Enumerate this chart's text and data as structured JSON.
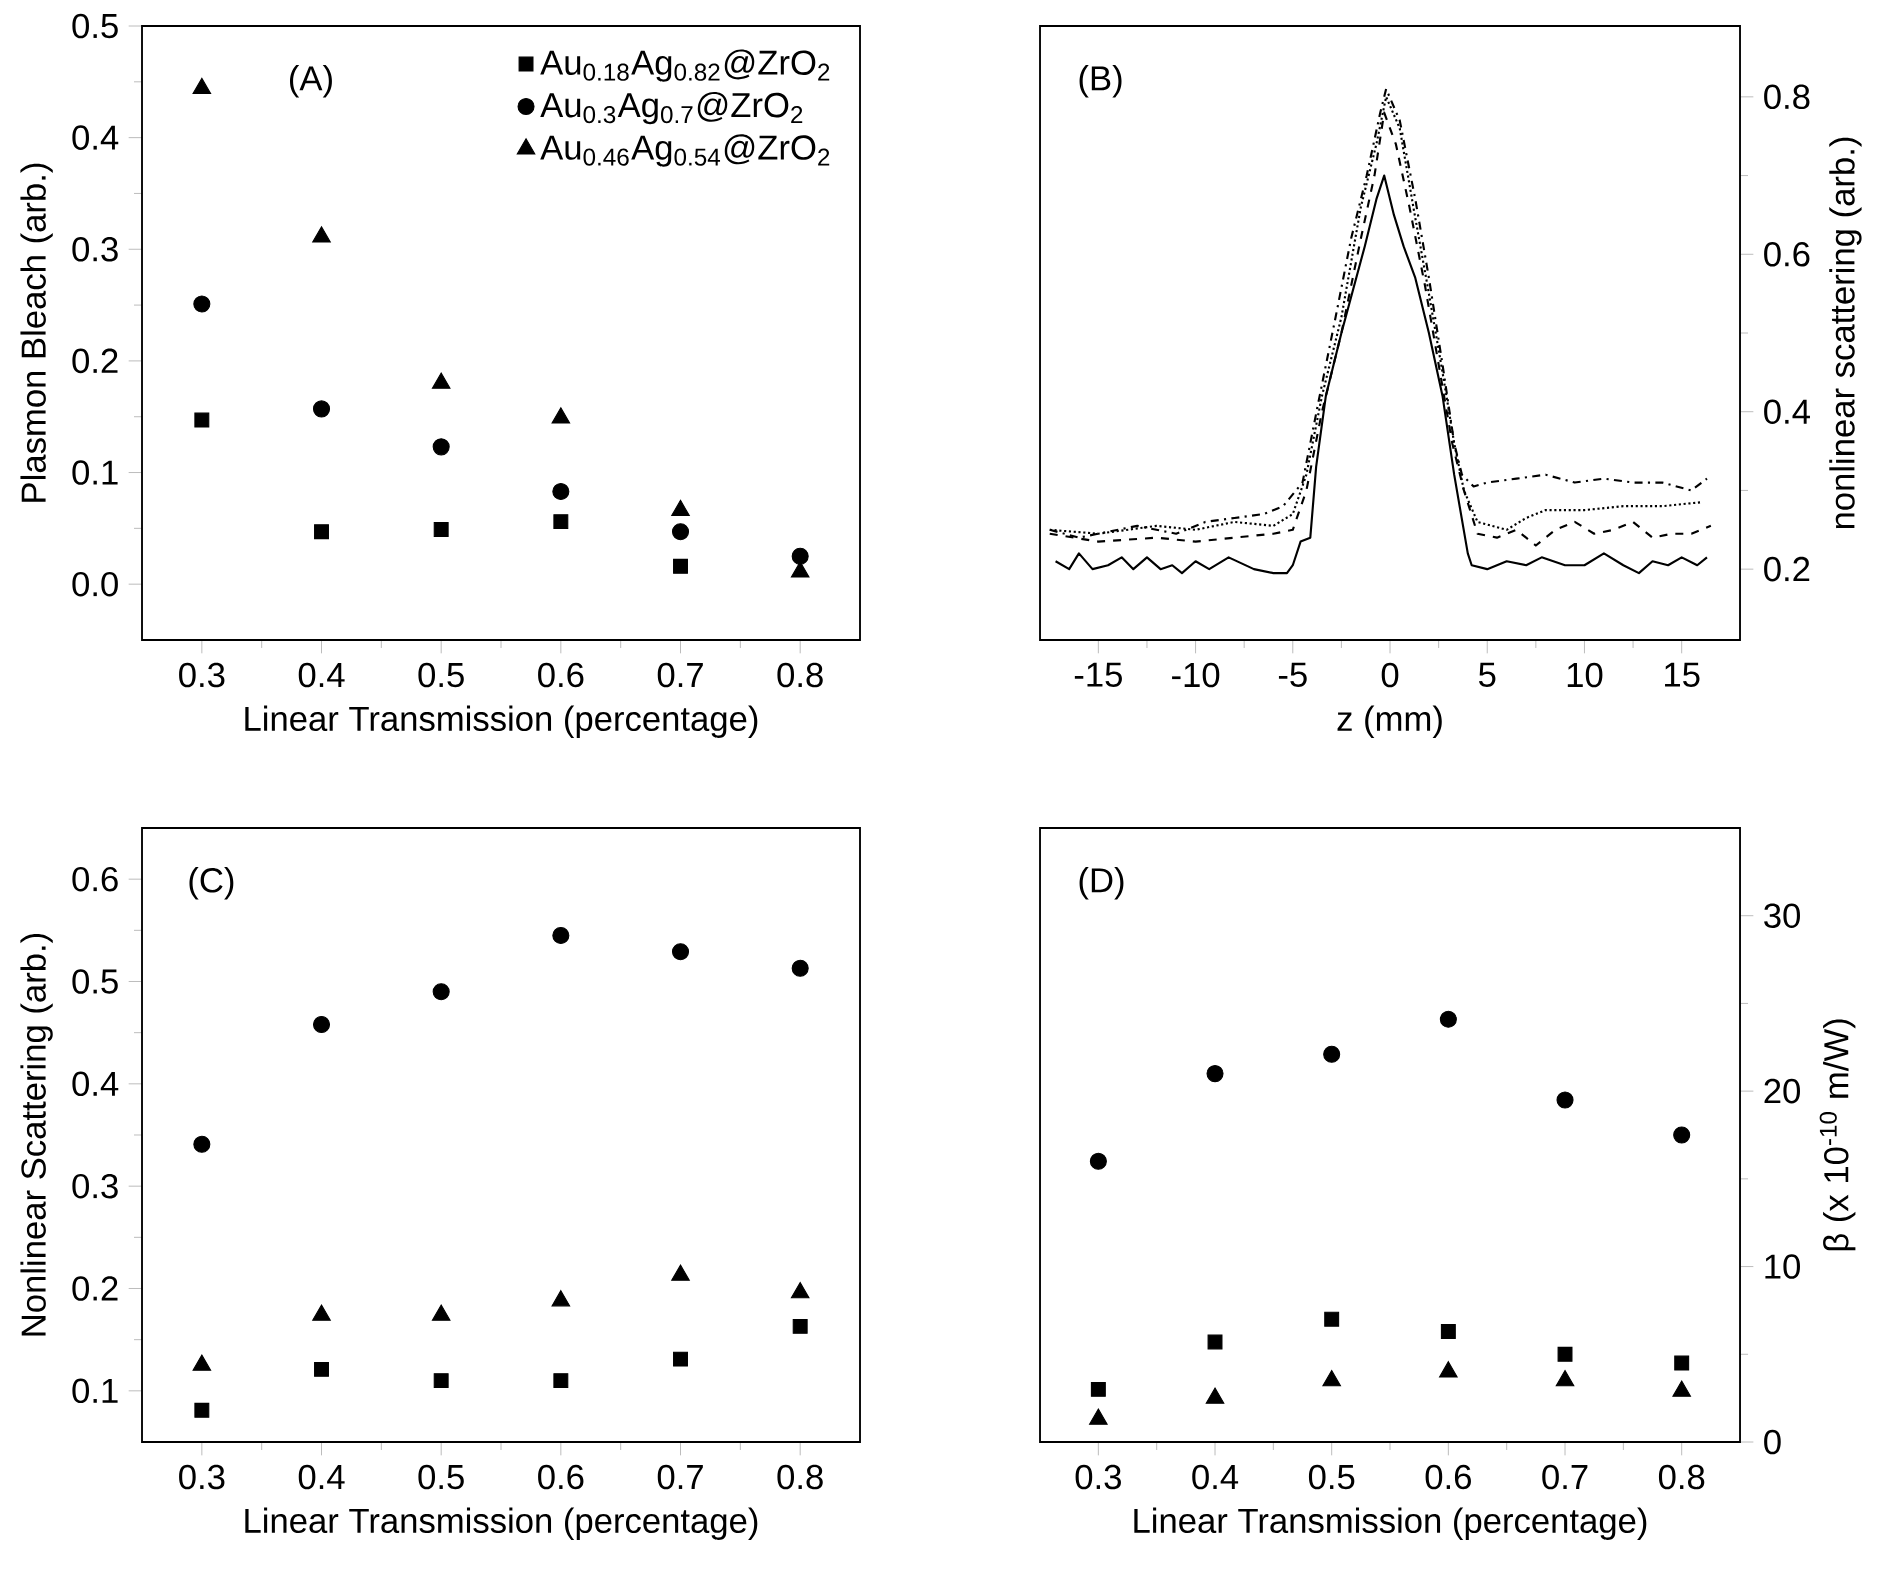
{
  "chart_data": [
    {
      "type": "scatter",
      "annotations": [
        "(A)"
      ],
      "xlabel": "Linear Transmission (percentage)",
      "ylabel": "Plasmon Bleach (arb.)",
      "x": [
        0.3,
        0.4,
        0.5,
        0.6,
        0.7,
        0.8
      ],
      "xlim": [
        0.25,
        0.85
      ],
      "xticks": [
        0.3,
        0.4,
        0.5,
        0.6,
        0.7,
        0.8
      ],
      "ylim": [
        -0.05,
        0.5
      ],
      "yticks": [
        {
          "value": 0,
          "label": "0.0"
        },
        0.1,
        0.2,
        0.3,
        0.4,
        0.5
      ],
      "legend": "top right",
      "series": [
        {
          "name": "Au$_{0.18}$Ag$_{0.82}$@ZrO$_{2}$",
          "color": "#000000",
          "marker": "square",
          "values": [
            0.147,
            0.047,
            0.049,
            0.056,
            0.016,
            null
          ]
        },
        {
          "name": "Au$_{0.3}$Ag$_{0.7}$@ZrO$_{2}$",
          "color": "#000000",
          "marker": "circle",
          "values": [
            0.251,
            0.157,
            0.123,
            0.083,
            0.047,
            0.025
          ]
        },
        {
          "name": "Au$_{0.46}$Ag$_{0.54}$@ZrO$_{2}$",
          "color": "#000000",
          "marker": "triangle",
          "values": [
            0.444,
            0.311,
            0.18,
            0.149,
            0.066,
            0.011
          ]
        }
      ]
    },
    {
      "type": "line",
      "annotations": [
        "(B)"
      ],
      "xlabel": "z (mm)",
      "y2label": "nonlinear scattering (arb.)",
      "xlim": [
        -18,
        18
      ],
      "xticks": [
        -15,
        -10,
        -5,
        0,
        5,
        10,
        15
      ],
      "y2lim": [
        0.11,
        0.89
      ],
      "y2ticks": [
        0.2,
        0.4,
        0.6,
        0.8
      ],
      "series": [
        {
          "color": "#000000",
          "line_style": "solid",
          "marker": "none",
          "axis": "y2",
          "x": [
            -17.2,
            -16.5,
            -16,
            -15.3,
            -14.5,
            -13.8,
            -13.2,
            -12.5,
            -11.8,
            -11.2,
            -10.7,
            -10,
            -9.3,
            -8.3,
            -7,
            -6,
            -5.3,
            -5.0,
            -4.6,
            -4.1,
            -3.8,
            -3.3,
            -2.5,
            -1.3,
            -0.7,
            -0.3,
            0.2,
            0.7,
            1.3,
            2.0,
            2.7,
            3.3,
            4.0,
            4.2,
            5,
            6,
            7,
            7.8,
            9,
            10,
            11,
            12,
            12.8,
            13.5,
            14.3,
            15,
            15.8,
            16.3
          ],
          "values": [
            0.21,
            0.2,
            0.22,
            0.2,
            0.205,
            0.215,
            0.2,
            0.215,
            0.2,
            0.205,
            0.195,
            0.21,
            0.2,
            0.215,
            0.2,
            0.195,
            0.195,
            0.205,
            0.235,
            0.24,
            0.33,
            0.42,
            0.5,
            0.61,
            0.67,
            0.7,
            0.65,
            0.61,
            0.57,
            0.5,
            0.42,
            0.32,
            0.22,
            0.205,
            0.2,
            0.21,
            0.205,
            0.215,
            0.205,
            0.205,
            0.22,
            0.205,
            0.195,
            0.21,
            0.205,
            0.215,
            0.205,
            0.215
          ]
        },
        {
          "color": "#000000",
          "line_style": "dashed",
          "marker": "none",
          "axis": "y2",
          "x": [
            -17.5,
            -15,
            -12,
            -10,
            -8,
            -6,
            -5,
            -4.3,
            -3.5,
            -2.5,
            -1.5,
            -0.8,
            -0.3,
            0.3,
            1,
            1.8,
            2.5,
            3.2,
            3.8,
            4.5,
            5.5,
            6.5,
            7.5,
            8.5,
            9.5,
            10.5,
            11.5,
            12.5,
            13.5,
            14.5,
            15.5,
            16.5
          ],
          "values": [
            0.245,
            0.235,
            0.24,
            0.235,
            0.24,
            0.245,
            0.25,
            0.3,
            0.4,
            0.5,
            0.62,
            0.7,
            0.78,
            0.74,
            0.66,
            0.56,
            0.46,
            0.36,
            0.3,
            0.245,
            0.24,
            0.25,
            0.23,
            0.25,
            0.26,
            0.245,
            0.25,
            0.26,
            0.24,
            0.245,
            0.245,
            0.255
          ]
        },
        {
          "color": "#000000",
          "line_style": "dotted",
          "marker": "none",
          "axis": "y2",
          "x": [
            -17.5,
            -15,
            -12,
            -10,
            -8,
            -6,
            -5,
            -4.3,
            -3.5,
            -2.5,
            -1.5,
            -0.7,
            -0.2,
            0.5,
            1.2,
            2,
            2.7,
            3.3,
            3.8,
            4.5,
            6,
            7,
            8,
            10,
            12,
            14,
            16
          ],
          "values": [
            0.25,
            0.245,
            0.255,
            0.25,
            0.26,
            0.255,
            0.27,
            0.32,
            0.42,
            0.52,
            0.66,
            0.74,
            0.8,
            0.76,
            0.66,
            0.55,
            0.45,
            0.36,
            0.3,
            0.26,
            0.25,
            0.265,
            0.275,
            0.275,
            0.28,
            0.28,
            0.285
          ]
        },
        {
          "color": "#000000",
          "line_style": "dashdot",
          "marker": "none",
          "axis": "y2",
          "x": [
            -17.5,
            -16,
            -13,
            -11,
            -9.5,
            -8,
            -6.5,
            -5.5,
            -4.5,
            -3.7,
            -2.8,
            -2,
            -1.2,
            -0.5,
            -0.2,
            0.5,
            1.3,
            2,
            2.7,
            3.3,
            3.7,
            4.3,
            5,
            6.5,
            8,
            9.5,
            11,
            12.5,
            14,
            15.5,
            16.3
          ],
          "values": [
            0.25,
            0.24,
            0.255,
            0.245,
            0.26,
            0.265,
            0.27,
            0.28,
            0.31,
            0.41,
            0.52,
            0.62,
            0.7,
            0.78,
            0.81,
            0.77,
            0.67,
            0.57,
            0.46,
            0.36,
            0.32,
            0.305,
            0.31,
            0.315,
            0.32,
            0.31,
            0.315,
            0.31,
            0.31,
            0.3,
            0.315
          ]
        }
      ]
    },
    {
      "type": "scatter",
      "annotations": [
        "(C)"
      ],
      "xlabel": "Linear Transmission (percentage)",
      "ylabel": "Nonlinear Scattering (arb.)",
      "x": [
        0.3,
        0.4,
        0.5,
        0.6,
        0.7,
        0.8
      ],
      "xlim": [
        0.25,
        0.85
      ],
      "xticks": [
        0.3,
        0.4,
        0.5,
        0.6,
        0.7,
        0.8
      ],
      "ylim": [
        0.05,
        0.65
      ],
      "yticks": [
        0.1,
        0.2,
        0.3,
        0.4,
        0.5,
        0.6
      ],
      "series": [
        {
          "color": "#000000",
          "marker": "square",
          "values": [
            0.081,
            0.121,
            0.11,
            0.11,
            0.131,
            0.163
          ]
        },
        {
          "color": "#000000",
          "marker": "circle",
          "values": [
            0.341,
            0.458,
            0.49,
            0.545,
            0.529,
            0.513
          ]
        },
        {
          "color": "#000000",
          "marker": "triangle",
          "values": [
            0.125,
            0.174,
            0.174,
            0.188,
            0.213,
            0.196
          ]
        }
      ]
    },
    {
      "type": "scatter",
      "annotations": [
        "(D)"
      ],
      "xlabel": "Linear Transmission (percentage)",
      "y2label": "β (x 10$^{-10}$ m/W)",
      "x": [
        0.3,
        0.4,
        0.5,
        0.6,
        0.7,
        0.8
      ],
      "xlim": [
        0.25,
        0.85
      ],
      "xticks": [
        0.3,
        0.4,
        0.5,
        0.6,
        0.7,
        0.8
      ],
      "y2lim": [
        0,
        35
      ],
      "y2ticks": [
        0,
        10,
        20,
        30
      ],
      "series": [
        {
          "color": "#000000",
          "marker": "square",
          "axis": "y2",
          "values": [
            3.0,
            5.7,
            7.0,
            6.3,
            5.0,
            4.5
          ]
        },
        {
          "color": "#000000",
          "marker": "circle",
          "axis": "y2",
          "values": [
            16.0,
            21.0,
            22.1,
            24.1,
            19.5,
            17.5
          ]
        },
        {
          "color": "#000000",
          "marker": "triangle",
          "axis": "y2",
          "values": [
            1.3,
            2.5,
            3.5,
            4.0,
            3.5,
            2.9
          ]
        }
      ]
    }
  ]
}
